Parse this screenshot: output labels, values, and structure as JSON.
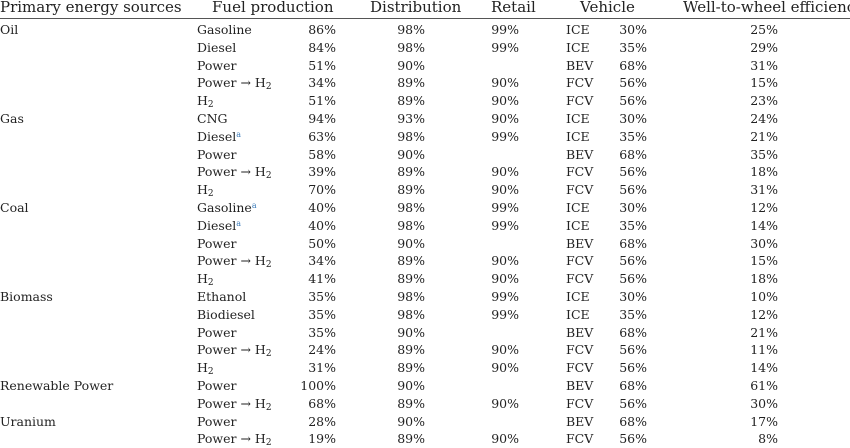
{
  "headers": {
    "source": "Primary energy sources",
    "fuel": "Fuel production",
    "distribution": "Distribution",
    "retail": "Retail",
    "vehicle": "Vehicle",
    "efficiency": "Well-to-wheel efficiency"
  },
  "rows": [
    {
      "source": "Oil",
      "fuel": "Gasoline",
      "fuel_sub": "",
      "fuel_sup": "",
      "fp": "86%",
      "dist": "98%",
      "retail": "99%",
      "veh": "ICE",
      "ve": "30%",
      "wtw": "25%"
    },
    {
      "source": "",
      "fuel": "Diesel",
      "fuel_sub": "",
      "fuel_sup": "",
      "fp": "84%",
      "dist": "98%",
      "retail": "99%",
      "veh": "ICE",
      "ve": "35%",
      "wtw": "29%"
    },
    {
      "source": "",
      "fuel": "Power",
      "fuel_sub": "",
      "fuel_sup": "",
      "fp": "51%",
      "dist": "90%",
      "retail": "",
      "veh": "BEV",
      "ve": "68%",
      "wtw": "31%"
    },
    {
      "source": "",
      "fuel": "Power → H",
      "fuel_sub": "2",
      "fuel_sup": "",
      "fp": "34%",
      "dist": "89%",
      "retail": "90%",
      "veh": "FCV",
      "ve": "56%",
      "wtw": "15%"
    },
    {
      "source": "",
      "fuel": "H",
      "fuel_sub": "2",
      "fuel_sup": "",
      "fp": "51%",
      "dist": "89%",
      "retail": "90%",
      "veh": "FCV",
      "ve": "56%",
      "wtw": "23%"
    },
    {
      "source": "Gas",
      "fuel": "CNG",
      "fuel_sub": "",
      "fuel_sup": "",
      "fp": "94%",
      "dist": "93%",
      "retail": "90%",
      "veh": "ICE",
      "ve": "30%",
      "wtw": "24%"
    },
    {
      "source": "",
      "fuel": "Diesel",
      "fuel_sub": "",
      "fuel_sup": "a",
      "fp": "63%",
      "dist": "98%",
      "retail": "99%",
      "veh": "ICE",
      "ve": "35%",
      "wtw": "21%"
    },
    {
      "source": "",
      "fuel": "Power",
      "fuel_sub": "",
      "fuel_sup": "",
      "fp": "58%",
      "dist": "90%",
      "retail": "",
      "veh": "BEV",
      "ve": "68%",
      "wtw": "35%"
    },
    {
      "source": "",
      "fuel": "Power → H",
      "fuel_sub": "2",
      "fuel_sup": "",
      "fp": "39%",
      "dist": "89%",
      "retail": "90%",
      "veh": "FCV",
      "ve": "56%",
      "wtw": "18%"
    },
    {
      "source": "",
      "fuel": "H",
      "fuel_sub": "2",
      "fuel_sup": "",
      "fp": "70%",
      "dist": "89%",
      "retail": "90%",
      "veh": "FCV",
      "ve": "56%",
      "wtw": "31%"
    },
    {
      "source": "Coal",
      "fuel": "Gasoline",
      "fuel_sub": "",
      "fuel_sup": "a",
      "fp": "40%",
      "dist": "98%",
      "retail": "99%",
      "veh": "ICE",
      "ve": "30%",
      "wtw": "12%"
    },
    {
      "source": "",
      "fuel": "Diesel",
      "fuel_sub": "",
      "fuel_sup": "a",
      "fp": "40%",
      "dist": "98%",
      "retail": "99%",
      "veh": "ICE",
      "ve": "35%",
      "wtw": "14%"
    },
    {
      "source": "",
      "fuel": "Power",
      "fuel_sub": "",
      "fuel_sup": "",
      "fp": "50%",
      "dist": "90%",
      "retail": "",
      "veh": "BEV",
      "ve": "68%",
      "wtw": "30%"
    },
    {
      "source": "",
      "fuel": "Power → H",
      "fuel_sub": "2",
      "fuel_sup": "",
      "fp": "34%",
      "dist": "89%",
      "retail": "90%",
      "veh": "FCV",
      "ve": "56%",
      "wtw": "15%"
    },
    {
      "source": "",
      "fuel": "H",
      "fuel_sub": "2",
      "fuel_sup": "",
      "fp": "41%",
      "dist": "89%",
      "retail": "90%",
      "veh": "FCV",
      "ve": "56%",
      "wtw": "18%"
    },
    {
      "source": "Biomass",
      "fuel": "Ethanol",
      "fuel_sub": "",
      "fuel_sup": "",
      "fp": "35%",
      "dist": "98%",
      "retail": "99%",
      "veh": "ICE",
      "ve": "30%",
      "wtw": "10%"
    },
    {
      "source": "",
      "fuel": "Biodiesel",
      "fuel_sub": "",
      "fuel_sup": "",
      "fp": "35%",
      "dist": "98%",
      "retail": "99%",
      "veh": "ICE",
      "ve": "35%",
      "wtw": "12%"
    },
    {
      "source": "",
      "fuel": "Power",
      "fuel_sub": "",
      "fuel_sup": "",
      "fp": "35%",
      "dist": "90%",
      "retail": "",
      "veh": "BEV",
      "ve": "68%",
      "wtw": "21%"
    },
    {
      "source": "",
      "fuel": "Power → H",
      "fuel_sub": "2",
      "fuel_sup": "",
      "fp": "24%",
      "dist": "89%",
      "retail": "90%",
      "veh": "FCV",
      "ve": "56%",
      "wtw": "11%"
    },
    {
      "source": "",
      "fuel": "H",
      "fuel_sub": "2",
      "fuel_sup": "",
      "fp": "31%",
      "dist": "89%",
      "retail": "90%",
      "veh": "FCV",
      "ve": "56%",
      "wtw": "14%"
    },
    {
      "source": "Renewable Power",
      "fuel": "Power",
      "fuel_sub": "",
      "fuel_sup": "",
      "fp": "100%",
      "dist": "90%",
      "retail": "",
      "veh": "BEV",
      "ve": "68%",
      "wtw": "61%"
    },
    {
      "source": "",
      "fuel": "Power → H",
      "fuel_sub": "2",
      "fuel_sup": "",
      "fp": "68%",
      "dist": "89%",
      "retail": "90%",
      "veh": "FCV",
      "ve": "56%",
      "wtw": "30%"
    },
    {
      "source": "Uranium",
      "fuel": "Power",
      "fuel_sub": "",
      "fuel_sup": "",
      "fp": "28%",
      "dist": "90%",
      "retail": "",
      "veh": "BEV",
      "ve": "68%",
      "wtw": "17%"
    },
    {
      "source": "",
      "fuel": "Power → H",
      "fuel_sub": "2",
      "fuel_sup": "",
      "fp": "19%",
      "dist": "89%",
      "retail": "90%",
      "veh": "FCV",
      "ve": "56%",
      "wtw": "8%"
    }
  ]
}
